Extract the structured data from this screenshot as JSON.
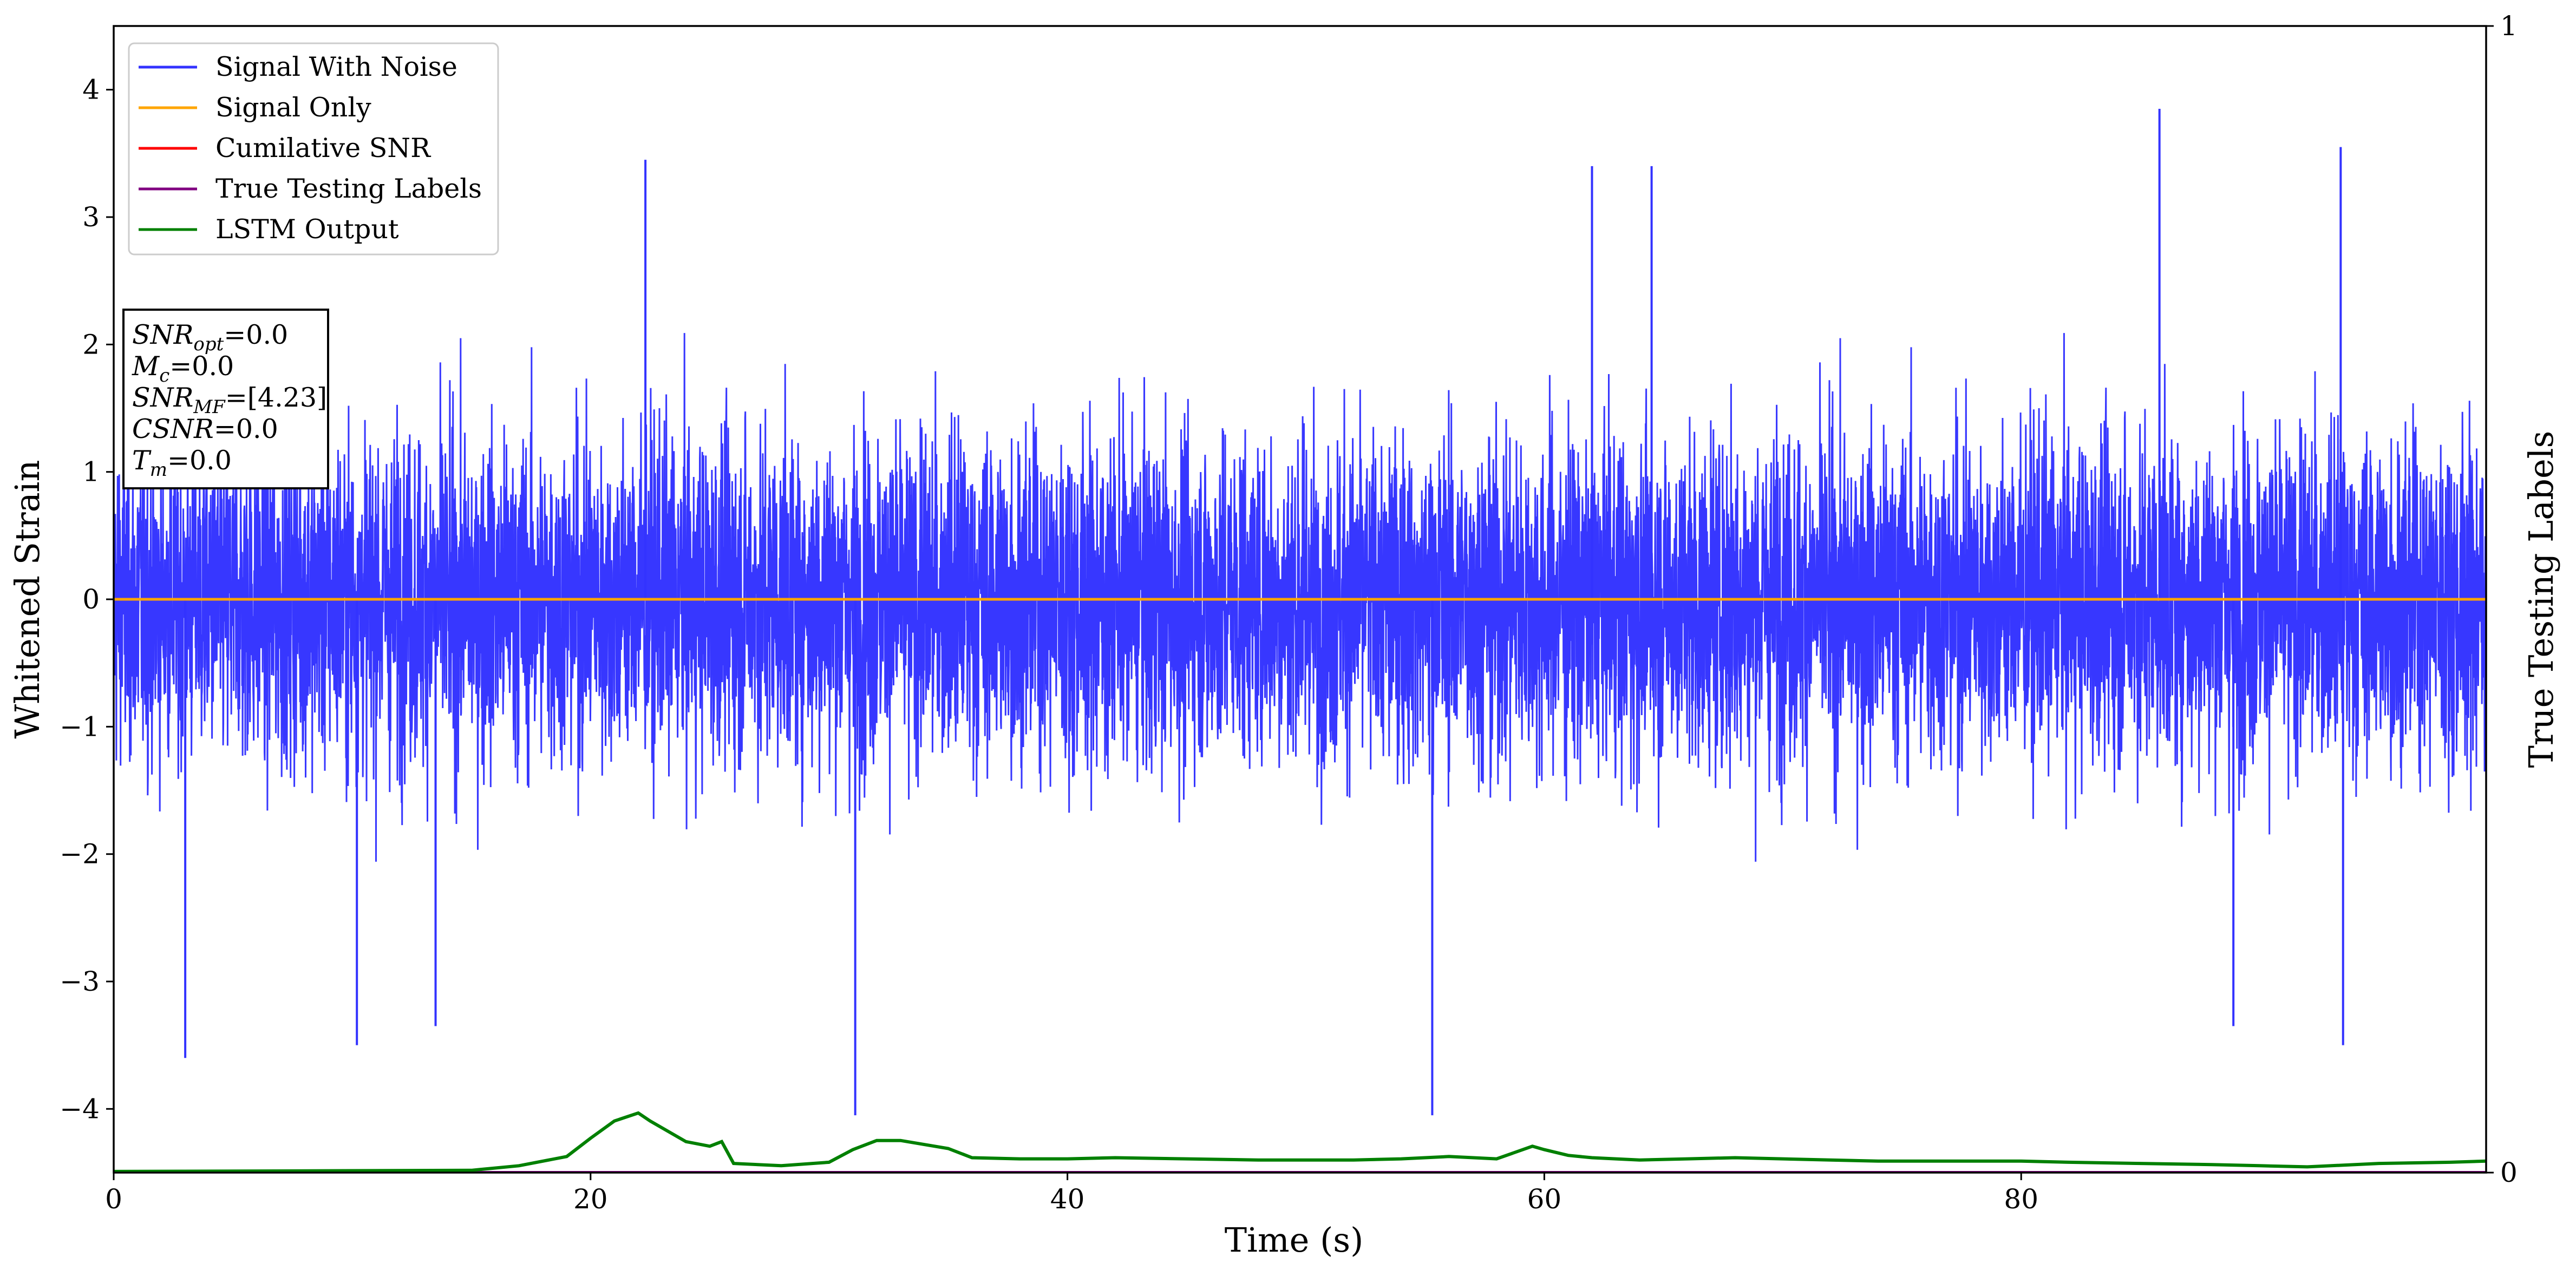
{
  "chart_data": {
    "type": "line",
    "xlabel": "Time (s)",
    "ylabel": "Whitened Strain",
    "ylabel_right": "True Testing Labels",
    "xlim": [
      0,
      99.5
    ],
    "ylim": [
      -4.5,
      4.5
    ],
    "ylim_right": [
      0,
      1
    ],
    "x_ticks": [
      0,
      20,
      40,
      60,
      80
    ],
    "x_tick_labels": [
      "0",
      "20",
      "40",
      "60",
      "80"
    ],
    "y_ticks": [
      4,
      3,
      2,
      1,
      0,
      -1,
      -2,
      -3,
      -4
    ],
    "y_tick_labels": [
      "4",
      "3",
      "2",
      "1",
      "0",
      "−1",
      "−2",
      "−3",
      "−4"
    ],
    "y_right_ticks": [
      1,
      0
    ],
    "y_right_tick_labels": [
      "1",
      "0"
    ],
    "grid": false,
    "legend_position": "top-left",
    "series": [
      {
        "name": "Signal With Noise",
        "color": "#3333ff",
        "description_values": "dense noise, mostly within about ±1.3",
        "envelope": {
          "typical_abs": 1.3,
          "max_obs": 3.85,
          "min_obs": -4.05
        },
        "spikes": [
          {
            "x": 3.0,
            "y": -3.6
          },
          {
            "x": 10.2,
            "y": -3.5
          },
          {
            "x": 13.5,
            "y": -3.35
          },
          {
            "x": 22.3,
            "y": 3.45
          },
          {
            "x": 31.1,
            "y": -4.05
          },
          {
            "x": 55.3,
            "y": -4.05
          },
          {
            "x": 62.0,
            "y": 3.4
          },
          {
            "x": 64.5,
            "y": 3.4
          },
          {
            "x": 85.8,
            "y": 3.85
          },
          {
            "x": 93.4,
            "y": 3.55
          },
          {
            "x": 93.5,
            "y": -3.5
          },
          {
            "x": 88.9,
            "y": -3.35
          }
        ]
      },
      {
        "name": "Signal Only",
        "color": "#ffa500",
        "x": [
          0,
          99.5
        ],
        "y": [
          0,
          0
        ]
      },
      {
        "name": "Cumilative SNR",
        "color": "#ff0000",
        "x": [],
        "y": []
      },
      {
        "name": "True Testing Labels",
        "color": "#800080",
        "axis": "right",
        "x": [
          0,
          99.5
        ],
        "y": [
          0,
          0
        ]
      },
      {
        "name": "LSTM Output",
        "color": "#008000",
        "axis": "right",
        "x": [
          0,
          15,
          17,
          19,
          20,
          21,
          22,
          22.5,
          24,
          25,
          25.5,
          26,
          28,
          30,
          31,
          32,
          33,
          35,
          36,
          38,
          40,
          42,
          45,
          48,
          50,
          52,
          54,
          56,
          58,
          59.5,
          60,
          61,
          62,
          64,
          66,
          68,
          70,
          72,
          74,
          76,
          78,
          80,
          82,
          85,
          88,
          90,
          92,
          95,
          98,
          99.5
        ],
        "y": [
          0.001,
          0.002,
          0.006,
          0.014,
          0.03,
          0.045,
          0.052,
          0.045,
          0.027,
          0.023,
          0.027,
          0.008,
          0.006,
          0.009,
          0.02,
          0.028,
          0.028,
          0.021,
          0.013,
          0.012,
          0.012,
          0.013,
          0.012,
          0.011,
          0.011,
          0.011,
          0.012,
          0.014,
          0.012,
          0.023,
          0.02,
          0.015,
          0.013,
          0.011,
          0.012,
          0.013,
          0.012,
          0.011,
          0.01,
          0.01,
          0.01,
          0.01,
          0.009,
          0.008,
          0.007,
          0.006,
          0.005,
          0.008,
          0.009,
          0.01
        ]
      }
    ],
    "legend_entries": [
      "Signal With Noise",
      "Signal Only",
      "Cumilative SNR",
      "True Testing Labels",
      "LSTM Output"
    ],
    "annotation_lines": [
      {
        "sym": "SNR",
        "sub": "opt",
        "val": "=0.0"
      },
      {
        "sym": "M",
        "sub": "c",
        "val": "=0.0"
      },
      {
        "sym": "SNR",
        "sub": "MF",
        "val": "=[4.23]"
      },
      {
        "sym": "CSNR",
        "sub": "",
        "val": "=0.0"
      },
      {
        "sym": "T",
        "sub": "m",
        "val": "=0.0"
      }
    ]
  }
}
